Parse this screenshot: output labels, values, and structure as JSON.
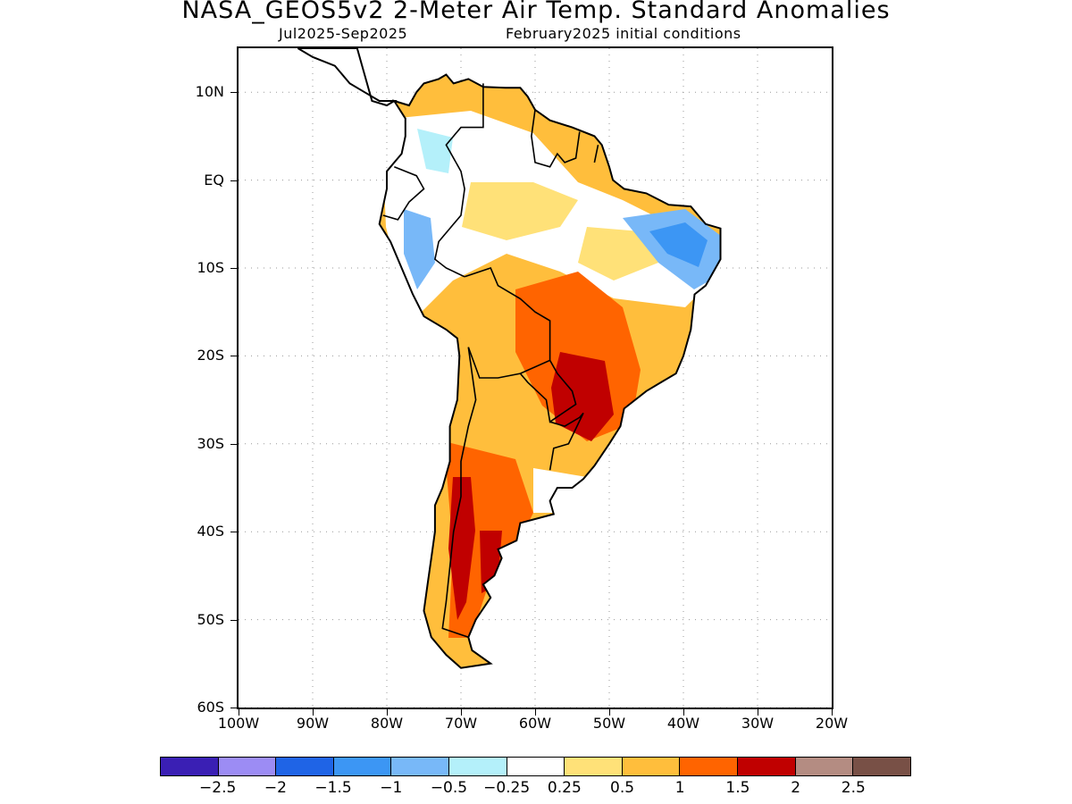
{
  "header": {
    "title": "NASA_GEOS5v2 2-Meter Air Temp. Standard Anomalies",
    "period": "Jul2025-Sep2025",
    "init": "February2025 initial conditions"
  },
  "map": {
    "lon_range": [
      -100,
      -20
    ],
    "lat_range": [
      -60,
      15
    ],
    "grid": "dotted",
    "lat_labels": [
      {
        "value": 10,
        "label": "10N"
      },
      {
        "value": 0,
        "label": "EQ"
      },
      {
        "value": -10,
        "label": "10S"
      },
      {
        "value": -20,
        "label": "20S"
      },
      {
        "value": -30,
        "label": "30S"
      },
      {
        "value": -40,
        "label": "40S"
      },
      {
        "value": -50,
        "label": "50S"
      },
      {
        "value": -60,
        "label": "60S"
      }
    ],
    "lon_labels": [
      {
        "value": -100,
        "label": "100W"
      },
      {
        "value": -90,
        "label": "90W"
      },
      {
        "value": -80,
        "label": "80W"
      },
      {
        "value": -70,
        "label": "70W"
      },
      {
        "value": -60,
        "label": "60W"
      },
      {
        "value": -50,
        "label": "50W"
      },
      {
        "value": -40,
        "label": "40W"
      },
      {
        "value": -30,
        "label": "30W"
      },
      {
        "value": -20,
        "label": "20W"
      }
    ]
  },
  "colorbar": {
    "colors": [
      "#3a1fb4",
      "#9c8cf4",
      "#1f64e6",
      "#3c96f4",
      "#78b8f8",
      "#b4f0fa",
      "#ffffff",
      "#ffe178",
      "#ffbe3c",
      "#ff6400",
      "#c00000",
      "#b48c82",
      "#785046"
    ],
    "labels": [
      "-2.5",
      "-2",
      "-1.5",
      "-1",
      "-0.5",
      "-0.25",
      "0.25",
      "0.5",
      "1",
      "1.5",
      "2",
      "2.5"
    ]
  }
}
